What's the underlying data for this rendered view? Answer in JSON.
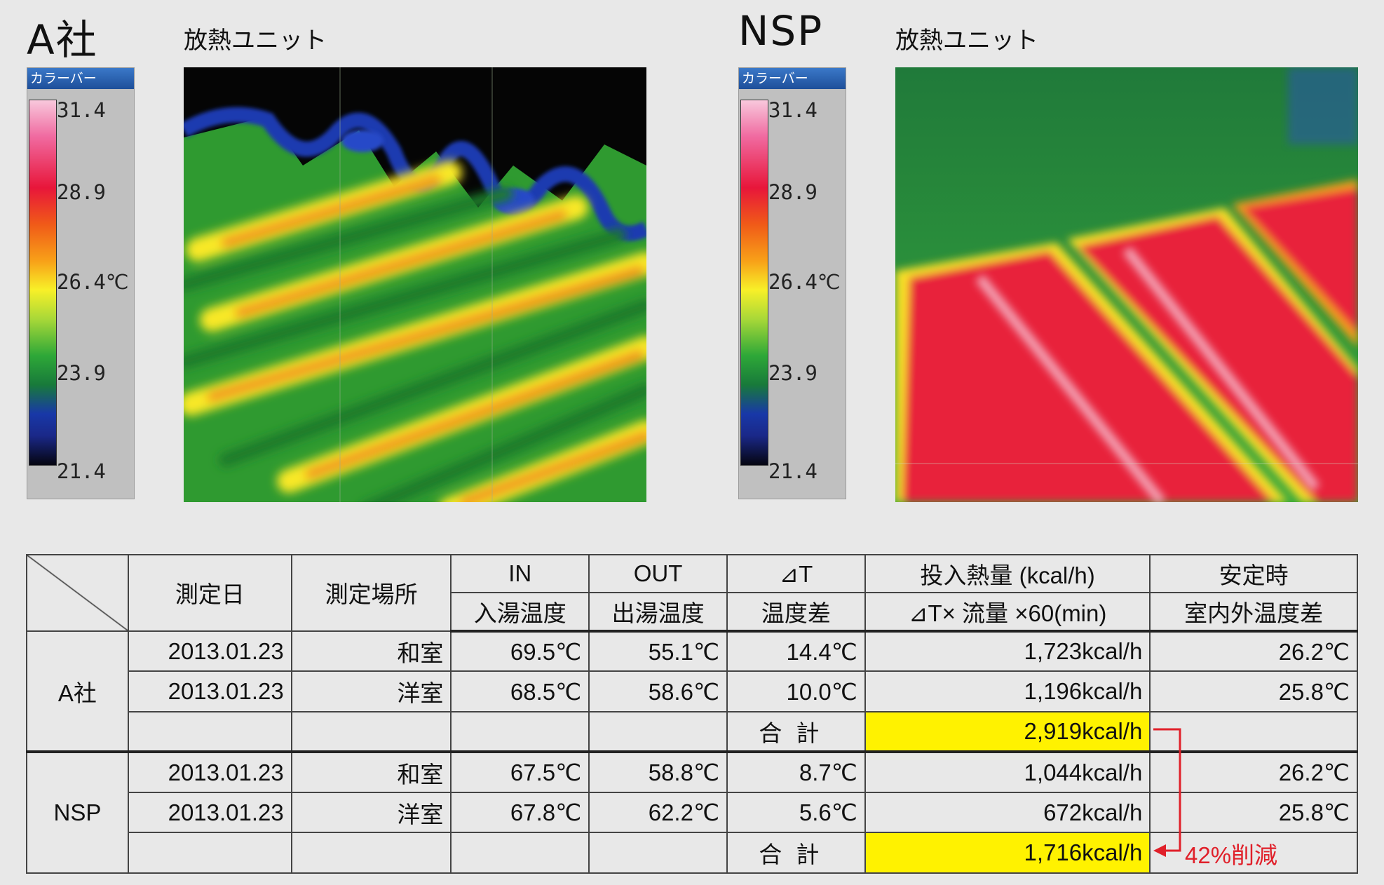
{
  "panels": [
    {
      "company": "A社",
      "unit_label": "放熱ユニット",
      "colorbar_title": "カラーバー",
      "ticks": [
        "31.4",
        "28.9",
        "26.4℃",
        "23.9",
        "21.4"
      ]
    },
    {
      "company": "NSP",
      "unit_label": "放熱ユニット",
      "colorbar_title": "カラーバー",
      "ticks": [
        "31.4",
        "28.9",
        "26.4℃",
        "23.9",
        "21.4"
      ]
    }
  ],
  "table": {
    "headers": {
      "date": "測定日",
      "place": "測定場所",
      "in_top": "IN",
      "in_bottom": "入湯温度",
      "out_top": "OUT",
      "out_bottom": "出湯温度",
      "dt_top": "⊿T",
      "dt_bottom": "温度差",
      "heat_top": "投入熱量 (kcal/h)",
      "heat_bottom": "⊿T× 流量 ×60(min)",
      "stable_top": "安定時",
      "stable_bottom": "室内外温度差"
    },
    "groups": [
      {
        "name": "A社",
        "rows": [
          {
            "date": "2013.01.23",
            "place": "和室",
            "in": "69.5℃",
            "out": "55.1℃",
            "dt": "14.4℃",
            "heat": "1,723kcal/h",
            "stable": "26.2℃"
          },
          {
            "date": "2013.01.23",
            "place": "洋室",
            "in": "68.5℃",
            "out": "58.6℃",
            "dt": "10.0℃",
            "heat": "1,196kcal/h",
            "stable": "25.8℃"
          }
        ],
        "total_label": "合計",
        "total": "2,919kcal/h"
      },
      {
        "name": "NSP",
        "rows": [
          {
            "date": "2013.01.23",
            "place": "和室",
            "in": "67.5℃",
            "out": "58.8℃",
            "dt": "8.7℃",
            "heat": "1,044kcal/h",
            "stable": "26.2℃"
          },
          {
            "date": "2013.01.23",
            "place": "洋室",
            "in": "67.8℃",
            "out": "62.2℃",
            "dt": "5.6℃",
            "heat": "672kcal/h",
            "stable": "25.8℃"
          }
        ],
        "total_label": "合計",
        "total": "1,716kcal/h"
      }
    ],
    "reduction_note": "42%削減"
  },
  "colors": {
    "highlight": "#fff200",
    "arrow": "#e0202a",
    "colorbar_title_bg": "#2a62b4"
  }
}
